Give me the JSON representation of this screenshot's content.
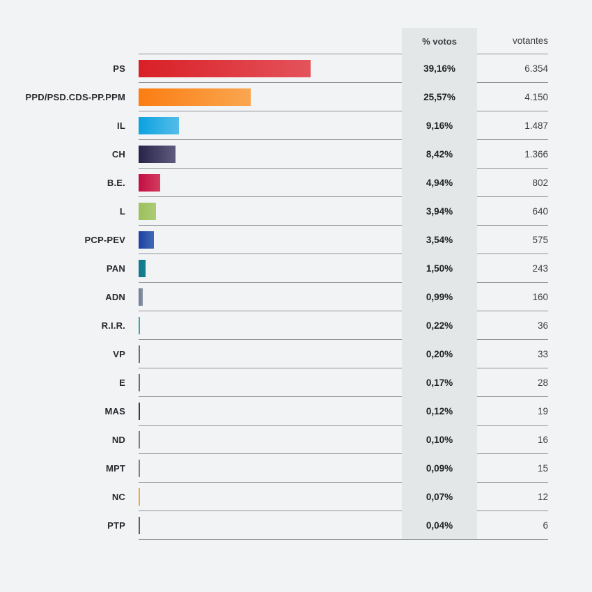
{
  "table": {
    "headers": {
      "pct": "% votos",
      "votantes": "votantes"
    },
    "rows": [
      {
        "party": "PS",
        "pct": 39.16,
        "pct_label": "39,16%",
        "votantes": "6.354",
        "color_start": "#d91f26",
        "color_end": "#e4535b"
      },
      {
        "party": "PPD/PSD.CDS-PP.PPM",
        "pct": 25.57,
        "pct_label": "25,57%",
        "votantes": "4.150",
        "color_start": "#fb7d12",
        "color_end": "#faa650"
      },
      {
        "party": "IL",
        "pct": 9.16,
        "pct_label": "9,16%",
        "votantes": "1.487",
        "color_start": "#0aa2e0",
        "color_end": "#55bce9"
      },
      {
        "party": "CH",
        "pct": 8.42,
        "pct_label": "8,42%",
        "votantes": "1.366",
        "color_start": "#292248",
        "color_end": "#5e5c7e"
      },
      {
        "party": "B.E.",
        "pct": 4.94,
        "pct_label": "4,94%",
        "votantes": "802",
        "color_start": "#c30d46",
        "color_end": "#d43d5e"
      },
      {
        "party": "L",
        "pct": 3.94,
        "pct_label": "3,94%",
        "votantes": "640",
        "color_start": "#9cc05d",
        "color_end": "#accb74"
      },
      {
        "party": "PCP-PEV",
        "pct": 3.54,
        "pct_label": "3,54%",
        "votantes": "575",
        "color_start": "#1d40a2",
        "color_end": "#4169b5"
      },
      {
        "party": "PAN",
        "pct": 1.5,
        "pct_label": "1,50%",
        "votantes": "243",
        "color_start": "#13798b",
        "color_end": "#15808f"
      },
      {
        "party": "ADN",
        "pct": 0.99,
        "pct_label": "0,99%",
        "votantes": "160",
        "color_start": "#6e7a91",
        "color_end": "#8b95a8"
      },
      {
        "party": "R.I.R.",
        "pct": 0.22,
        "pct_label": "0,22%",
        "votantes": "36",
        "color_start": "#41a4ad",
        "color_end": "#41a4ad"
      },
      {
        "party": "VP",
        "pct": 0.2,
        "pct_label": "0,20%",
        "votantes": "33",
        "color_start": "#6a6f76",
        "color_end": "#6a6f76"
      },
      {
        "party": "E",
        "pct": 0.17,
        "pct_label": "0,17%",
        "votantes": "28",
        "color_start": "#6a6f76",
        "color_end": "#6a6f76"
      },
      {
        "party": "MAS",
        "pct": 0.12,
        "pct_label": "0,12%",
        "votantes": "19",
        "color_start": "#3a3d42",
        "color_end": "#3a3d42"
      },
      {
        "party": "ND",
        "pct": 0.1,
        "pct_label": "0,10%",
        "votantes": "16",
        "color_start": "#7d828a",
        "color_end": "#7d828a"
      },
      {
        "party": "MPT",
        "pct": 0.09,
        "pct_label": "0,09%",
        "votantes": "15",
        "color_start": "#7d828a",
        "color_end": "#7d828a"
      },
      {
        "party": "NC",
        "pct": 0.07,
        "pct_label": "0,07%",
        "votantes": "12",
        "color_start": "#f3a83d",
        "color_end": "#f3a83d"
      },
      {
        "party": "PTP",
        "pct": 0.04,
        "pct_label": "0,04%",
        "votantes": "6",
        "color_start": "#5c6167",
        "color_end": "#5c6167"
      }
    ]
  },
  "colors": {
    "page_background": "#f2f3f4",
    "pct_column_background": "#e4e7e8",
    "row_line": "#8e9196",
    "text_primary": "#202124",
    "text_secondary": "#3c4043"
  },
  "chart_data": {
    "type": "bar",
    "orientation": "horizontal",
    "title": "",
    "xlabel": "",
    "ylabel": "",
    "xlim": [
      0,
      60
    ],
    "grid": false,
    "legend_position": "none",
    "categories": [
      "PS",
      "PPD/PSD.CDS-PP.PPM",
      "IL",
      "CH",
      "B.E.",
      "L",
      "PCP-PEV",
      "PAN",
      "ADN",
      "R.I.R.",
      "VP",
      "E",
      "MAS",
      "ND",
      "MPT",
      "NC",
      "PTP"
    ],
    "series": [
      {
        "name": "% votos",
        "values": [
          39.16,
          25.57,
          9.16,
          8.42,
          4.94,
          3.94,
          3.54,
          1.5,
          0.99,
          0.22,
          0.2,
          0.17,
          0.12,
          0.1,
          0.09,
          0.07,
          0.04
        ]
      },
      {
        "name": "votantes",
        "values": [
          6354,
          4150,
          1487,
          1366,
          802,
          640,
          575,
          243,
          160,
          36,
          33,
          28,
          19,
          16,
          15,
          12,
          6
        ]
      }
    ],
    "bar_colors": [
      "#d91f26",
      "#fb7d12",
      "#0aa2e0",
      "#292248",
      "#c30d46",
      "#9cc05d",
      "#1d40a2",
      "#13798b",
      "#6e7a91",
      "#41a4ad",
      "#6a6f76",
      "#6a6f76",
      "#3a3d42",
      "#7d828a",
      "#7d828a",
      "#f3a83d",
      "#5c6167"
    ]
  }
}
